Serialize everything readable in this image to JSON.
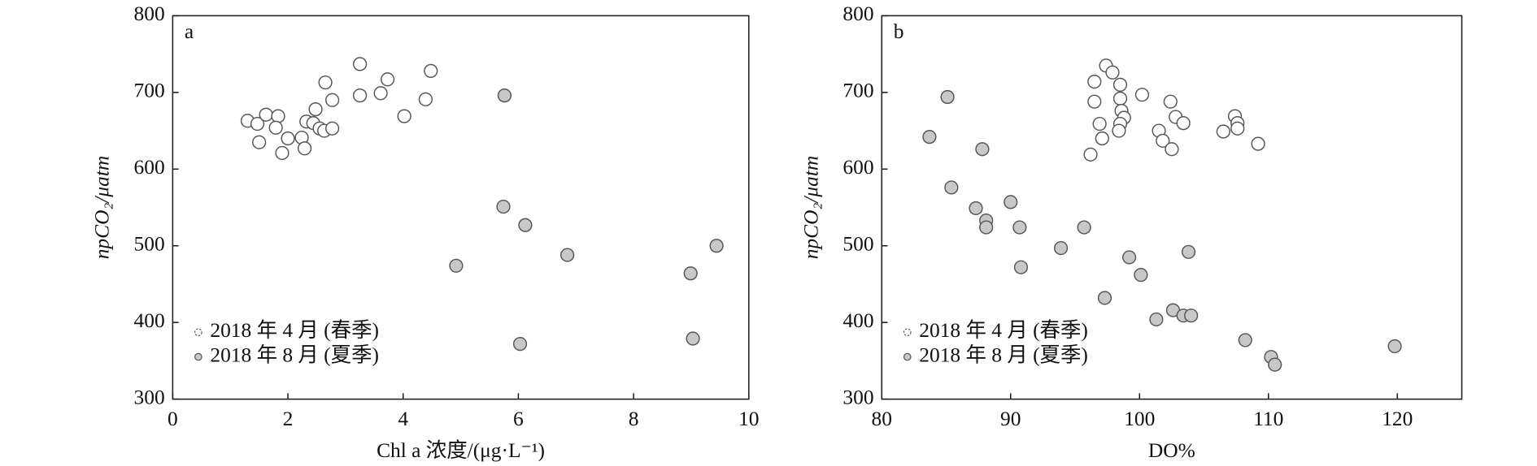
{
  "chart_data": [
    {
      "type": "scatter",
      "label": "a",
      "x_label": "Chl a 浓度/(μg·L⁻¹)",
      "y_label": "npCO₂/μatm",
      "xlim": [
        0,
        10
      ],
      "xticks": [
        0,
        2,
        4,
        6,
        8,
        10
      ],
      "ylim": [
        300,
        800
      ],
      "yticks": [
        300,
        400,
        500,
        600,
        700,
        800
      ],
      "legend": "lower left",
      "series": [
        {
          "name": "2018 年 4 月 (春季)",
          "color": "#ffffff",
          "edgecolor": "#555555",
          "x": [
            1.3,
            1.47,
            1.62,
            1.5,
            1.83,
            1.79,
            1.9,
            2.0,
            2.24,
            2.29,
            2.32,
            2.44,
            2.48,
            2.55,
            2.63,
            2.65,
            2.77,
            2.77,
            3.25,
            3.25,
            3.61,
            3.73,
            4.02,
            4.39,
            4.48
          ],
          "values": [
            663,
            659,
            671,
            635,
            669,
            654,
            621,
            640,
            641,
            627,
            662,
            660,
            678,
            653,
            650,
            713,
            690,
            653,
            737,
            696,
            699,
            717,
            669,
            691,
            728
          ]
        },
        {
          "name": "2018 年 8 月 (夏季)",
          "color": "#c8c8c8",
          "edgecolor": "#555555",
          "x": [
            5.76,
            5.74,
            6.12,
            4.92,
            6.85,
            6.03,
            8.99,
            9.03,
            9.44
          ],
          "values": [
            696,
            551,
            527,
            474,
            488,
            372,
            464,
            379,
            500
          ]
        }
      ]
    },
    {
      "type": "scatter",
      "label": "b",
      "x_label": "DO%",
      "y_label": "npCO₂/μatm",
      "xlim": [
        80,
        125
      ],
      "xticks": [
        80,
        90,
        100,
        110,
        120
      ],
      "ylim": [
        300,
        800
      ],
      "yticks": [
        300,
        400,
        500,
        600,
        700,
        800
      ],
      "legend": "lower left",
      "series": [
        {
          "name": "2018 年 4 月 (春季)",
          "color": "#ffffff",
          "edgecolor": "#555555",
          "x": [
            97.4,
            97.9,
            96.5,
            98.5,
            100.2,
            96.5,
            98.5,
            102.4,
            98.6,
            98.8,
            102.8,
            96.9,
            98.5,
            98.4,
            101.5,
            103.4,
            97.1,
            101.8,
            102.5,
            96.2,
            106.5,
            107.4,
            107.6,
            107.6,
            109.2
          ],
          "values": [
            735,
            726,
            714,
            710,
            697,
            688,
            692,
            688,
            676,
            667,
            668,
            659,
            659,
            650,
            650,
            660,
            640,
            637,
            626,
            619,
            649,
            669,
            660,
            653,
            633
          ]
        },
        {
          "name": "2018 年 8 月 (夏季)",
          "color": "#c8c8c8",
          "edgecolor": "#555555",
          "x": [
            85.1,
            83.7,
            87.8,
            85.4,
            87.3,
            88.1,
            88.1,
            90.0,
            90.7,
            90.8,
            93.9,
            95.7,
            97.3,
            99.2,
            100.1,
            101.3,
            102.6,
            103.4,
            104.0,
            103.8,
            108.2,
            110.2,
            110.5,
            119.8
          ],
          "values": [
            694,
            642,
            626,
            576,
            549,
            533,
            524,
            557,
            524,
            472,
            497,
            524,
            432,
            485,
            462,
            404,
            416,
            409,
            409,
            492,
            377,
            355,
            345,
            369
          ]
        }
      ]
    }
  ]
}
